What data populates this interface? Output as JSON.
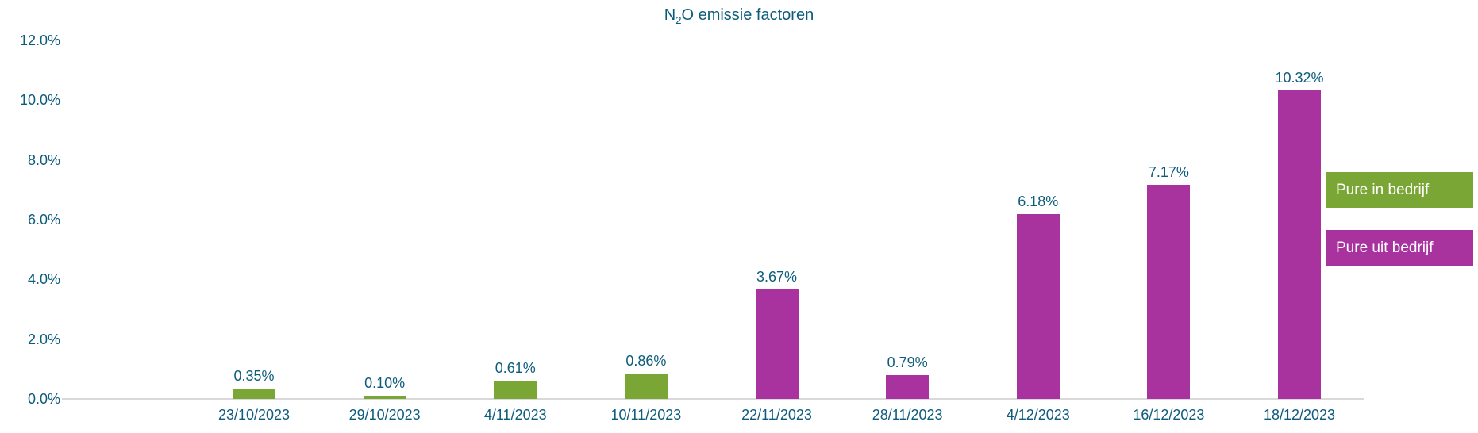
{
  "chart_data": {
    "type": "bar",
    "title": {
      "prefix": "N",
      "subscript": "2",
      "suffix": "O emissie factoren"
    },
    "categories": [
      "23/10/2023",
      "29/10/2023",
      "4/11/2023",
      "10/11/2023",
      "22/11/2023",
      "28/11/2023",
      "4/12/2023",
      "16/12/2023",
      "18/12/2023"
    ],
    "series": [
      {
        "name": "Pure in bedrijf",
        "color": "#7AA636",
        "values": [
          0.35,
          0.1,
          0.61,
          0.86,
          null,
          null,
          null,
          null,
          null
        ],
        "labels": [
          "0.35%",
          "0.10%",
          "0.61%",
          "0.86%",
          null,
          null,
          null,
          null,
          null
        ]
      },
      {
        "name": "Pure uit bedrijf",
        "color": "#A8339F",
        "values": [
          null,
          null,
          null,
          null,
          3.67,
          0.79,
          6.18,
          7.17,
          10.32
        ],
        "labels": [
          null,
          null,
          null,
          null,
          "3.67%",
          "0.79%",
          "6.18%",
          "7.17%",
          "10.32%"
        ]
      }
    ],
    "y_axis": {
      "min": 0,
      "max": 12,
      "ticks": [
        {
          "value": 0,
          "label": "0.0%"
        },
        {
          "value": 2,
          "label": "2.0%"
        },
        {
          "value": 4,
          "label": "4.0%"
        },
        {
          "value": 6,
          "label": "6.0%"
        },
        {
          "value": 8,
          "label": "8.0%"
        },
        {
          "value": 10,
          "label": "10.0%"
        },
        {
          "value": 12,
          "label": "12.0%"
        }
      ]
    },
    "legend": {
      "position": "right",
      "entries": [
        "Pure in bedrijf",
        "Pure uit bedrijf"
      ]
    },
    "colors": {
      "text": "#0E5C7C",
      "axis_line": "#D9D9D9",
      "legend_text": "#FFFFFF",
      "background": "#FFFFFF"
    },
    "grid": "off"
  }
}
